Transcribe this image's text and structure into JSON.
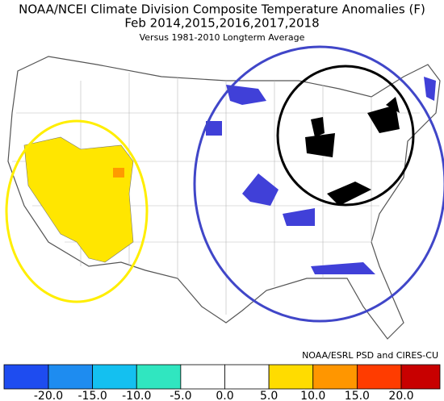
{
  "header": {
    "title": "NOAA/NCEI Climate Division Composite Temperature Anomalies (F)",
    "subtitle": "Feb  2014,2015,2016,2017,2018",
    "note": "Versus 1981-2010 Longterm Average"
  },
  "credit": "NOAA/ESRL PSD and CIRES-CU",
  "colorbar": {
    "ticks": [
      {
        "value": -20,
        "label": "-20.0"
      },
      {
        "value": -15,
        "label": "-15.0"
      },
      {
        "value": -10,
        "label": "-10.0"
      },
      {
        "value": -5,
        "label": "-5.0"
      },
      {
        "value": 0,
        "label": "0.0"
      },
      {
        "value": 5,
        "label": "5.0"
      },
      {
        "value": 10,
        "label": "10.0"
      },
      {
        "value": 15,
        "label": "15.0"
      },
      {
        "value": 20,
        "label": "20.0"
      }
    ],
    "colors": [
      "#1e4cf0",
      "#1e8cf0",
      "#14c0f0",
      "#30e6c0",
      "#ffffff",
      "#ffffff",
      "#ffdc00",
      "#ff9600",
      "#ff3c00",
      "#c80000"
    ]
  }
}
